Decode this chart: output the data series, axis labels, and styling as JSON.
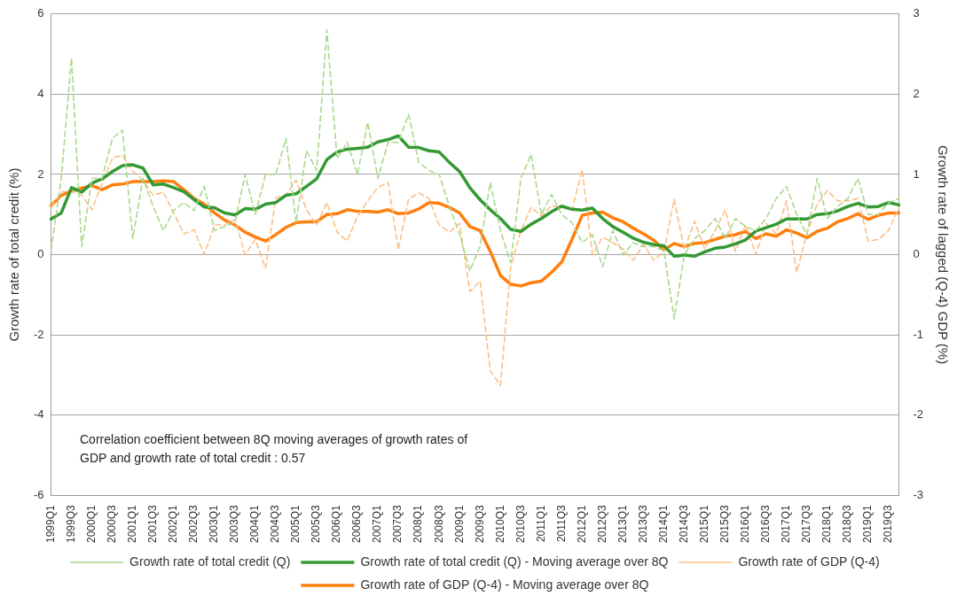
{
  "chart_data": {
    "type": "line",
    "ylabel": "Growth rate of total credit (%)",
    "y2label": "Growth rate of lagged (Q-4) GDP (%)",
    "categories": [
      "1999Q1",
      null,
      "1999Q3",
      null,
      "2000Q1",
      null,
      "2000Q3",
      null,
      "2001Q1",
      null,
      "2001Q3",
      null,
      "2002Q1",
      null,
      "2002Q3",
      null,
      "2003Q1",
      null,
      "2003Q3",
      null,
      "2004Q1",
      null,
      "2004Q3",
      null,
      "2005Q1",
      null,
      "2005Q3",
      null,
      "2006Q1",
      null,
      "2006Q3",
      null,
      "2007Q1",
      null,
      "2007Q3",
      null,
      "2008Q1",
      null,
      "2008Q3",
      null,
      "2009Q1",
      null,
      "2009Q3",
      null,
      "2010Q1",
      null,
      "2010Q3",
      null,
      "2011Q1",
      null,
      "2011Q3",
      null,
      "2012Q1",
      null,
      "2012Q3",
      null,
      "2013Q1",
      null,
      "2013Q3",
      null,
      "2014Q1",
      null,
      "2014Q3",
      null,
      "2015Q1",
      null,
      "2015Q3",
      null,
      "2016Q1",
      null,
      "2016Q3",
      null,
      "2017Q1",
      null,
      "2017Q3",
      null,
      "2018Q1",
      null,
      "2018Q3",
      null,
      "2019Q1",
      null,
      "2019Q3",
      null
    ],
    "series": [
      {
        "name": "Growth rate of total credit (Q)",
        "color": "#a9d98c",
        "line_style": "dashed",
        "values": [
          0.1,
          1.9,
          4.9,
          0.2,
          1.9,
          1.9,
          2.9,
          3.1,
          0.4,
          1.9,
          1.2,
          0.6,
          1.1,
          1.3,
          1.1,
          1.7,
          0.6,
          0.7,
          0.8,
          2.0,
          1.0,
          2.0,
          2.0,
          2.9,
          0.8,
          2.6,
          2.1,
          5.6,
          2.4,
          2.8,
          2.0,
          3.3,
          1.9,
          2.8,
          2.8,
          3.5,
          2.3,
          2.1,
          2.0,
          1.2,
          0.5,
          -0.4,
          0.2,
          1.8,
          0.6,
          -0.2,
          1.9,
          2.5,
          1.0,
          1.5,
          1.0,
          0.8,
          0.3,
          0.5,
          -0.3,
          0.6,
          0.0,
          0.3,
          0.2,
          0.2,
          0.1,
          -1.6,
          0.0,
          0.4,
          0.6,
          0.9,
          0.4,
          0.9,
          0.7,
          0.6,
          0.9,
          1.4,
          1.7,
          1.0,
          0.5,
          1.9,
          0.9,
          1.2,
          1.4,
          1.9,
          1.0,
          1.0,
          1.3,
          1.4
        ]
      },
      {
        "name": "Growth rate of total credit (Q) - Moving average over 8Q",
        "color": "#339933",
        "line_style": "solid",
        "values": [
          0.89,
          1.04,
          1.67,
          1.56,
          1.78,
          1.89,
          2.07,
          2.22,
          2.24,
          2.16,
          1.74,
          1.76,
          1.67,
          1.57,
          1.37,
          1.19,
          1.17,
          1.04,
          0.99,
          1.15,
          1.13,
          1.26,
          1.3,
          1.48,
          1.52,
          1.7,
          1.89,
          2.37,
          2.56,
          2.63,
          2.65,
          2.68,
          2.81,
          2.87,
          2.96,
          2.68,
          2.67,
          2.59,
          2.56,
          2.3,
          2.07,
          1.67,
          1.37,
          1.12,
          0.9,
          0.63,
          0.58,
          0.76,
          0.9,
          1.07,
          1.21,
          1.13,
          1.11,
          1.16,
          0.9,
          0.7,
          0.56,
          0.41,
          0.31,
          0.25,
          0.22,
          -0.04,
          -0.01,
          -0.04,
          0.07,
          0.16,
          0.19,
          0.27,
          0.37,
          0.59,
          0.67,
          0.76,
          0.89,
          0.89,
          0.89,
          1.0,
          1.02,
          1.09,
          1.2,
          1.28,
          1.19,
          1.2,
          1.3,
          1.24
        ]
      },
      {
        "name": "Growth rate of GDP (Q-4)",
        "color": "#fdbf85",
        "line_style": "dashed",
        "axis": "y2",
        "values": [
          0.6,
          0.78,
          0.8,
          0.74,
          0.56,
          0.89,
          1.2,
          1.24,
          1.04,
          0.93,
          0.74,
          0.78,
          0.52,
          0.26,
          0.31,
          0.0,
          0.37,
          0.37,
          0.44,
          0.0,
          0.19,
          -0.17,
          0.71,
          0.74,
          0.93,
          0.56,
          0.37,
          0.65,
          0.28,
          0.17,
          0.48,
          0.67,
          0.84,
          0.9,
          0.06,
          0.69,
          0.77,
          0.7,
          0.37,
          0.28,
          0.39,
          -0.46,
          -0.33,
          -1.45,
          -1.63,
          -0.15,
          0.3,
          0.59,
          0.48,
          0.61,
          0.59,
          0.56,
          1.06,
          0.0,
          0.22,
          0.15,
          0.07,
          -0.07,
          0.13,
          -0.07,
          0.04,
          0.69,
          0.06,
          0.42,
          0.07,
          0.3,
          0.56,
          0.04,
          0.37,
          0.0,
          0.39,
          0.26,
          0.67,
          -0.22,
          0.26,
          0.63,
          0.8,
          0.67,
          0.67,
          0.7,
          0.17,
          0.19,
          0.3,
          0.59
        ]
      },
      {
        "name": "Growth rate of GDP (Q-4) - Moving average over 8Q",
        "color": "#ff7f0e",
        "line_style": "solid",
        "axis": "y2",
        "values": [
          0.61,
          0.74,
          0.79,
          0.83,
          0.86,
          0.81,
          0.87,
          0.88,
          0.91,
          0.91,
          0.91,
          0.92,
          0.91,
          0.81,
          0.7,
          0.63,
          0.52,
          0.43,
          0.37,
          0.28,
          0.22,
          0.17,
          0.25,
          0.34,
          0.4,
          0.41,
          0.41,
          0.5,
          0.51,
          0.56,
          0.54,
          0.54,
          0.53,
          0.56,
          0.51,
          0.52,
          0.57,
          0.65,
          0.64,
          0.59,
          0.52,
          0.35,
          0.3,
          0.04,
          -0.26,
          -0.37,
          -0.39,
          -0.35,
          -0.33,
          -0.22,
          -0.09,
          0.19,
          0.49,
          0.52,
          0.53,
          0.46,
          0.41,
          0.33,
          0.26,
          0.18,
          0.06,
          0.14,
          0.1,
          0.14,
          0.15,
          0.19,
          0.23,
          0.25,
          0.29,
          0.2,
          0.26,
          0.23,
          0.31,
          0.27,
          0.21,
          0.29,
          0.33,
          0.41,
          0.45,
          0.51,
          0.44,
          0.49,
          0.52,
          0.52
        ]
      }
    ],
    "ylim": [
      -6,
      6
    ],
    "yticks": [
      -6,
      -4,
      -2,
      0,
      2,
      4,
      6
    ],
    "y2lim": [
      -3,
      3
    ],
    "y2ticks": [
      -3,
      -2,
      -1,
      0,
      1,
      2,
      3
    ],
    "grid": "y",
    "legend": "bottom",
    "annotations": [
      "Correlation coefficient between 8Q moving averages of growth rates of GDP and growth rate of total credit : 0.57"
    ]
  }
}
